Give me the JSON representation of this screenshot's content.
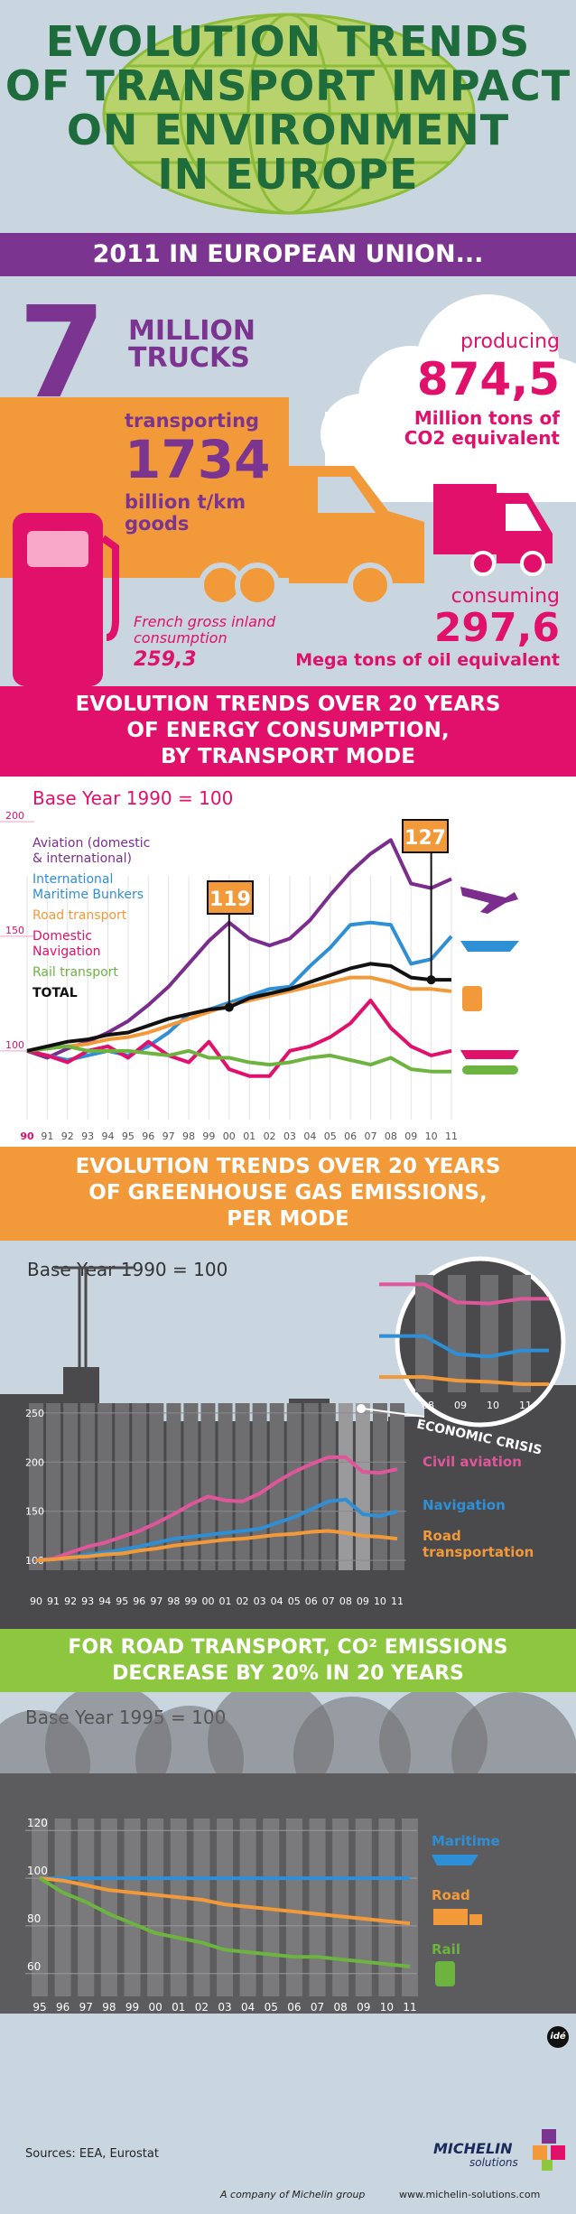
{
  "title": [
    "EVOLUTION TRENDS",
    "OF TRANSPORT IMPACT",
    "ON ENVIRONMENT",
    "IN EUROPE"
  ],
  "eu2011": {
    "banner": "2011 IN EUROPEAN UNION...",
    "trucks_number": "7",
    "trucks_label_1": "MILLION",
    "trucks_label_2": "TRUCKS",
    "transporting_label": "transporting",
    "transporting_value": "1734",
    "transporting_unit": "billion t/km goods",
    "producing_label": "producing",
    "producing_value": "874,5",
    "producing_unit_1": "Million tons of",
    "producing_unit_2": "CO2 equivalent",
    "french_label_1": "French gross inland",
    "french_label_2": "consumption",
    "french_value": "259,3",
    "consuming_label": "consuming",
    "consuming_value": "297,6",
    "consuming_unit": "Mega tons of oil equivalent"
  },
  "section_energy": {
    "banner": [
      "EVOLUTION TRENDS OVER 20 YEARS",
      "OF ENERGY CONSUMPTION,",
      "BY TRANSPORT MODE"
    ],
    "base_year": "Base Year 1990 = 100",
    "callouts": [
      "119",
      "127"
    ],
    "legend": [
      {
        "label_1": "Aviation (domestic",
        "label_2": "& international)",
        "color": "#7b2d8e"
      },
      {
        "label_1": "International",
        "label_2": "Maritime Bunkers",
        "color": "#2f8fd4"
      },
      {
        "label_1": "Road transport",
        "label_2": "",
        "color": "#f29a3a"
      },
      {
        "label_1": "Domestic",
        "label_2": "Navigation",
        "color": "#e0106b"
      },
      {
        "label_1": "Rail transport",
        "label_2": "",
        "color": "#6cb33f"
      },
      {
        "label_1": "TOTAL",
        "label_2": "",
        "color": "#111111"
      }
    ]
  },
  "section_ghg": {
    "banner": [
      "EVOLUTION TRENDS OVER 20 YEARS",
      "OF GREENHOUSE GAS EMISSIONS,",
      "PER MODE"
    ],
    "base_year": "Base Year 1990 = 100",
    "crisis_label": "ECONOMIC CRISIS",
    "zoom_ticks": [
      "08",
      "09",
      "10",
      "11"
    ],
    "legend": [
      {
        "label_1": "Civil aviation",
        "label_2": "",
        "color": "#e0569a"
      },
      {
        "label_1": "Navigation",
        "label_2": "",
        "color": "#2f8fd4"
      },
      {
        "label_1": "Road",
        "label_2": "transportation",
        "color": "#f29a3a"
      }
    ]
  },
  "section_road": {
    "banner": [
      "FOR ROAD TRANSPORT, CO² EMISSIONS",
      "DECREASE BY 20% IN 20 YEARS"
    ],
    "base_year": "Base Year 1995 = 100",
    "legend": [
      {
        "label_1": "Maritime",
        "color": "#2f8fd4"
      },
      {
        "label_1": "Road",
        "color": "#f29a3a"
      },
      {
        "label_1": "Rail",
        "color": "#6cb33f"
      }
    ]
  },
  "footer": {
    "sources": "Sources:  EEA, Eurostat",
    "brand_1": "MICHELIN",
    "brand_2": "solutions",
    "company": "A company of Michelin group",
    "url": "www.michelin-solutions.com",
    "badge": "idé"
  },
  "colors": {
    "purple": "#7b2d8e",
    "magenta": "#e0106b",
    "orange": "#f29a3a",
    "green_band": "#8dc63f",
    "title_green": "#1e6b3b",
    "dark_gray": "#4a4a4c"
  },
  "chart_data": [
    {
      "type": "line",
      "title": "EVOLUTION TRENDS OVER 20 YEARS OF ENERGY CONSUMPTION, BY TRANSPORT MODE",
      "subtitle": "Base Year 1990 = 100",
      "categories": [
        "90",
        "91",
        "92",
        "93",
        "94",
        "95",
        "96",
        "97",
        "98",
        "99",
        "00",
        "01",
        "02",
        "03",
        "04",
        "05",
        "06",
        "07",
        "08",
        "09",
        "10",
        "11"
      ],
      "ylim": [
        70,
        200
      ],
      "yticks": [
        200,
        150,
        100
      ],
      "series": [
        {
          "name": "Aviation (domestic & international)",
          "color": "#7b2d8e",
          "values": [
            100,
            97,
            101,
            104,
            108,
            113,
            120,
            128,
            138,
            148,
            156,
            149,
            146,
            149,
            157,
            168,
            178,
            186,
            192,
            173,
            171,
            175
          ]
        },
        {
          "name": "International Maritime Bunkers",
          "color": "#2f8fd4",
          "values": [
            100,
            98,
            96,
            98,
            100,
            98,
            102,
            108,
            116,
            118,
            121,
            124,
            127,
            128,
            137,
            145,
            155,
            156,
            155,
            138,
            140,
            150
          ]
        },
        {
          "name": "Road transport",
          "color": "#f29a3a",
          "values": [
            100,
            101,
            102,
            103,
            105,
            106,
            108,
            111,
            114,
            117,
            120,
            122,
            124,
            126,
            128,
            130,
            132,
            132,
            130,
            127,
            127,
            126
          ]
        },
        {
          "name": "Domestic Navigation",
          "color": "#e0106b",
          "values": [
            100,
            98,
            95,
            100,
            102,
            97,
            104,
            98,
            95,
            104,
            92,
            89,
            89,
            100,
            102,
            106,
            112,
            122,
            110,
            102,
            98,
            100
          ]
        },
        {
          "name": "Rail transport",
          "color": "#6cb33f",
          "values": [
            100,
            101,
            102,
            100,
            100,
            100,
            99,
            98,
            100,
            97,
            97,
            95,
            94,
            95,
            97,
            98,
            96,
            94,
            97,
            92,
            91,
            91
          ]
        },
        {
          "name": "TOTAL",
          "color": "#111111",
          "values": [
            100,
            102,
            104,
            105,
            107,
            108,
            111,
            114,
            116,
            118,
            119,
            123,
            125,
            127,
            130,
            133,
            136,
            138,
            137,
            132,
            131,
            131
          ]
        }
      ],
      "annotations": [
        {
          "x": "00",
          "value": 119
        },
        {
          "x": "10",
          "value": 127
        }
      ]
    },
    {
      "type": "line",
      "title": "EVOLUTION TRENDS OVER 20 YEARS OF GREENHOUSE GAS EMISSIONS, PER MODE",
      "subtitle": "Base Year 1990 = 100",
      "categories": [
        "90",
        "91",
        "92",
        "93",
        "94",
        "95",
        "96",
        "97",
        "98",
        "99",
        "00",
        "01",
        "02",
        "03",
        "04",
        "05",
        "06",
        "07",
        "08",
        "09",
        "10",
        "11"
      ],
      "ylim": [
        90,
        260
      ],
      "yticks": [
        250,
        200,
        150,
        100
      ],
      "series": [
        {
          "name": "Civil aviation",
          "color": "#e0569a",
          "values": [
            100,
            102,
            108,
            114,
            118,
            124,
            130,
            138,
            147,
            157,
            165,
            161,
            160,
            168,
            180,
            190,
            198,
            205,
            205,
            190,
            189,
            193
          ]
        },
        {
          "name": "Navigation",
          "color": "#2f8fd4",
          "values": [
            100,
            101,
            103,
            106,
            108,
            111,
            114,
            118,
            122,
            124,
            126,
            128,
            130,
            132,
            138,
            144,
            152,
            160,
            162,
            147,
            145,
            150
          ]
        },
        {
          "name": "Road transportation",
          "color": "#f29a3a",
          "values": [
            100,
            101,
            103,
            104,
            106,
            107,
            110,
            112,
            115,
            117,
            119,
            121,
            122,
            124,
            126,
            127,
            129,
            130,
            128,
            125,
            124,
            122
          ]
        }
      ],
      "annotations": [
        {
          "label": "ECONOMIC CRISIS",
          "x_range": [
            "08",
            "11"
          ]
        }
      ]
    },
    {
      "type": "line",
      "title": "FOR ROAD TRANSPORT, CO² EMISSIONS DECREASE BY 20% IN 20 YEARS",
      "subtitle": "Base Year 1995 = 100",
      "categories": [
        "95",
        "96",
        "97",
        "98",
        "99",
        "00",
        "01",
        "02",
        "03",
        "04",
        "05",
        "06",
        "07",
        "08",
        "09",
        "10",
        "11"
      ],
      "ylim": [
        55,
        125
      ],
      "yticks": [
        120,
        100,
        80,
        60
      ],
      "series": [
        {
          "name": "Maritime",
          "color": "#2f8fd4",
          "values": [
            100,
            100,
            100,
            100,
            100,
            100,
            100,
            100,
            100,
            100,
            100,
            100,
            100,
            100,
            100,
            100,
            100
          ]
        },
        {
          "name": "Road",
          "color": "#f29a3a",
          "values": [
            100,
            99,
            97,
            95,
            94,
            93,
            92,
            91,
            89,
            88,
            87,
            86,
            85,
            84,
            83,
            82,
            81
          ]
        },
        {
          "name": "Rail",
          "color": "#6cb33f",
          "values": [
            100,
            94,
            90,
            85,
            81,
            77,
            75,
            73,
            70,
            69,
            68,
            67,
            67,
            66,
            65,
            64,
            63
          ]
        }
      ]
    }
  ]
}
